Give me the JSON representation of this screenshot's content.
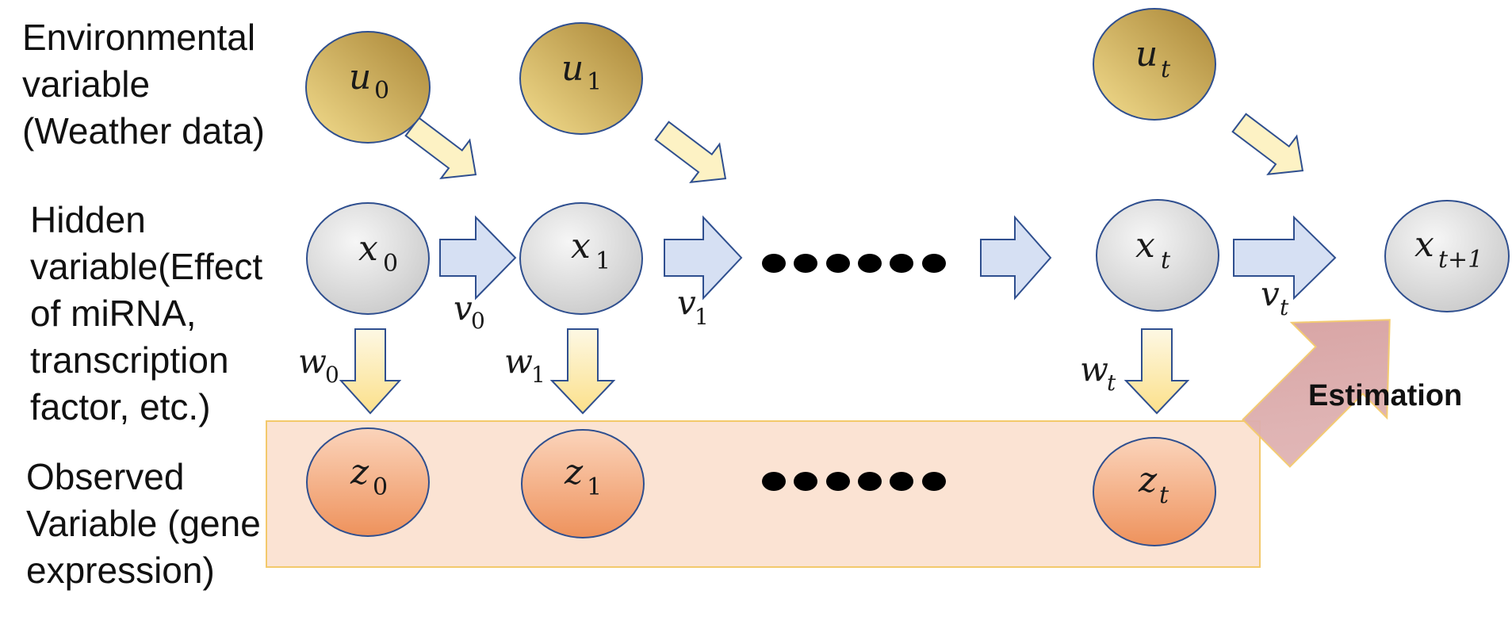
{
  "labels": {
    "environmental": [
      "Environmental",
      "variable",
      "(Weather data)"
    ],
    "hidden": [
      "Hidden",
      "variable(Effect",
      "of miRNA,",
      "transcription",
      "factor, etc.)"
    ],
    "observed": [
      "Observed",
      "Variable (gene",
      "expression)"
    ]
  },
  "nodes": {
    "u0": {
      "sym": "u",
      "sub": "0"
    },
    "u1": {
      "sym": "u",
      "sub": "1"
    },
    "ut": {
      "sym": "u",
      "sub": "t"
    },
    "x0": {
      "sym": "x",
      "sub": "0"
    },
    "x1": {
      "sym": "x",
      "sub": "1"
    },
    "xt": {
      "sym": "x",
      "sub": "t"
    },
    "xt1": {
      "sym": "x",
      "sub": "t+1"
    },
    "z0": {
      "sym": "z",
      "sub": "0"
    },
    "z1": {
      "sym": "z",
      "sub": "1"
    },
    "zt": {
      "sym": "z",
      "sub": "t"
    }
  },
  "noise": {
    "v0": {
      "sym": "v",
      "sub": "0"
    },
    "v1": {
      "sym": "v",
      "sub": "1"
    },
    "vt": {
      "sym": "v",
      "sub": "t"
    },
    "w0": {
      "sym": "w",
      "sub": "0"
    },
    "w1": {
      "sym": "w",
      "sub": "1"
    },
    "wt": {
      "sym": "w",
      "sub": "t"
    }
  },
  "estimation_label": "Estimation",
  "colors": {
    "u_node": "#c9ab55",
    "x_node": "#dcdcdc",
    "z_node": "#f0a070",
    "node_stroke": "#2f4f8f",
    "observed_band": "#fbe3d3",
    "observed_band_stroke": "#f3c96b",
    "transition_arrow": "#d6e0f3",
    "input_arrow": "#fdf2c4",
    "emission_arrow": "#fde9a0",
    "estimation_arrow": "#d9a9a9"
  }
}
